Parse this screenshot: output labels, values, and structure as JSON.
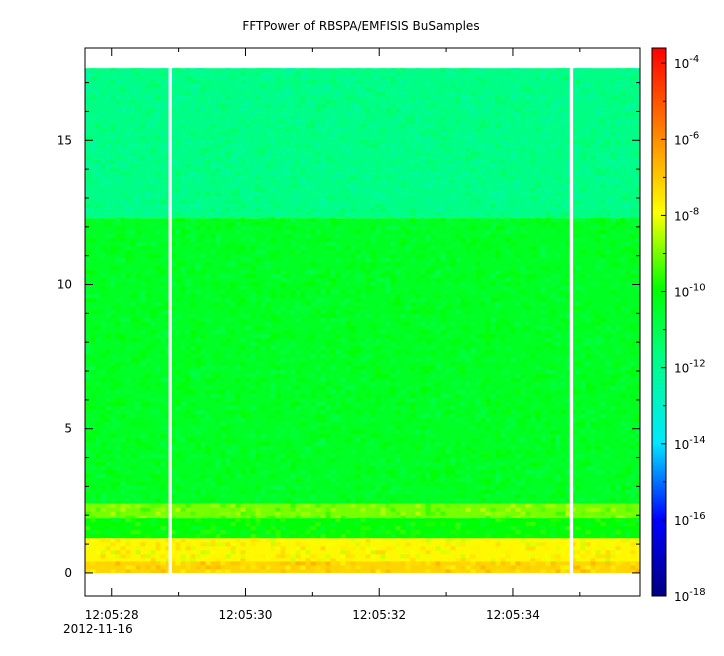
{
  "chart_data": {
    "type": "heatmap",
    "title": "FFTPower of RBSPA/EMFISIS  BuSamples",
    "xlabel": "",
    "ylabel": "",
    "x_tick_labels": [
      "12:05:28",
      "12:05:30",
      "12:05:32",
      "12:05:34"
    ],
    "x_ticks_seconds": [
      28,
      30,
      32,
      34
    ],
    "x_date_label": "2012-11-16",
    "xlim_seconds": [
      27.6,
      35.9
    ],
    "y_ticks": [
      0,
      5,
      10,
      15
    ],
    "ylim": [
      -0.8,
      18.2
    ],
    "data_y_range": [
      0,
      17.5
    ],
    "data_gaps_seconds": [
      [
        28.85,
        28.9
      ],
      [
        34.85,
        34.9
      ]
    ],
    "colorbar": {
      "scale": "log",
      "range_exponents": [
        -18,
        -3.6
      ],
      "tick_labels": [
        "10-18",
        "10-16",
        "10-14",
        "10-12",
        "10-10",
        "10-8",
        "10-6",
        "10-4"
      ],
      "tick_exponents": [
        -18,
        -16,
        -14,
        -12,
        -10,
        -8,
        -6,
        -4
      ]
    },
    "bands": [
      {
        "y_range": [
          12.3,
          17.5
        ],
        "log_power": -11.8
      },
      {
        "y_range": [
          2.4,
          12.3
        ],
        "log_power": -10.4
      },
      {
        "y_range": [
          1.9,
          2.4
        ],
        "log_power": -9.0
      },
      {
        "y_range": [
          1.2,
          1.9
        ],
        "log_power": -10.0
      },
      {
        "y_range": [
          0.4,
          1.2
        ],
        "log_power": -7.8
      },
      {
        "y_range": [
          0,
          0.4
        ],
        "log_power": -7.2
      }
    ]
  }
}
